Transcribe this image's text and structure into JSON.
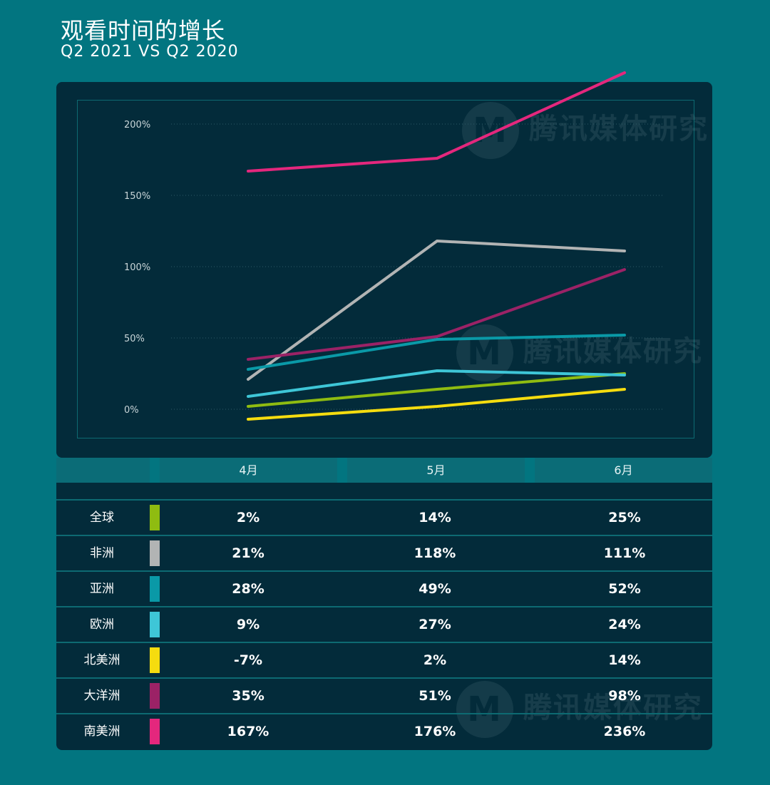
{
  "header": {
    "title": "观看时间的增长",
    "subtitle": "Q2 2021 VS Q2 2020"
  },
  "watermark": {
    "text": "腾讯媒体研究",
    "logo_letter": "M"
  },
  "chart_data": {
    "type": "line",
    "title": "观看时间的增长",
    "subtitle": "Q2 2021 VS Q2 2020",
    "categories": [
      "4月",
      "5月",
      "6月"
    ],
    "y_ticks": [
      "0%",
      "50%",
      "100%",
      "150%",
      "200%"
    ],
    "ylim": [
      -10,
      240
    ],
    "grid": true,
    "series": [
      {
        "name": "全球",
        "color": "#8fbc11",
        "values": [
          2,
          14,
          25
        ],
        "labels": [
          "2%",
          "14%",
          "25%"
        ]
      },
      {
        "name": "非洲",
        "color": "#b2b4b4",
        "values": [
          21,
          118,
          111
        ],
        "labels": [
          "21%",
          "118%",
          "111%"
        ]
      },
      {
        "name": "亚洲",
        "color": "#0a99a7",
        "values": [
          28,
          49,
          52
        ],
        "labels": [
          "28%",
          "49%",
          "52%"
        ]
      },
      {
        "name": "欧洲",
        "color": "#3ec6d7",
        "values": [
          9,
          27,
          24
        ],
        "labels": [
          "9%",
          "27%",
          "24%"
        ]
      },
      {
        "name": "北美洲",
        "color": "#f5dc0f",
        "values": [
          -7,
          2,
          14
        ],
        "labels": [
          "-7%",
          "2%",
          "14%"
        ]
      },
      {
        "name": "大洋洲",
        "color": "#9b2266",
        "values": [
          35,
          51,
          98
        ],
        "labels": [
          "35%",
          "51%",
          "98%"
        ]
      },
      {
        "name": "南美洲",
        "color": "#e4277d",
        "values": [
          167,
          176,
          236
        ],
        "labels": [
          "167%",
          "176%",
          "236%"
        ]
      }
    ]
  }
}
